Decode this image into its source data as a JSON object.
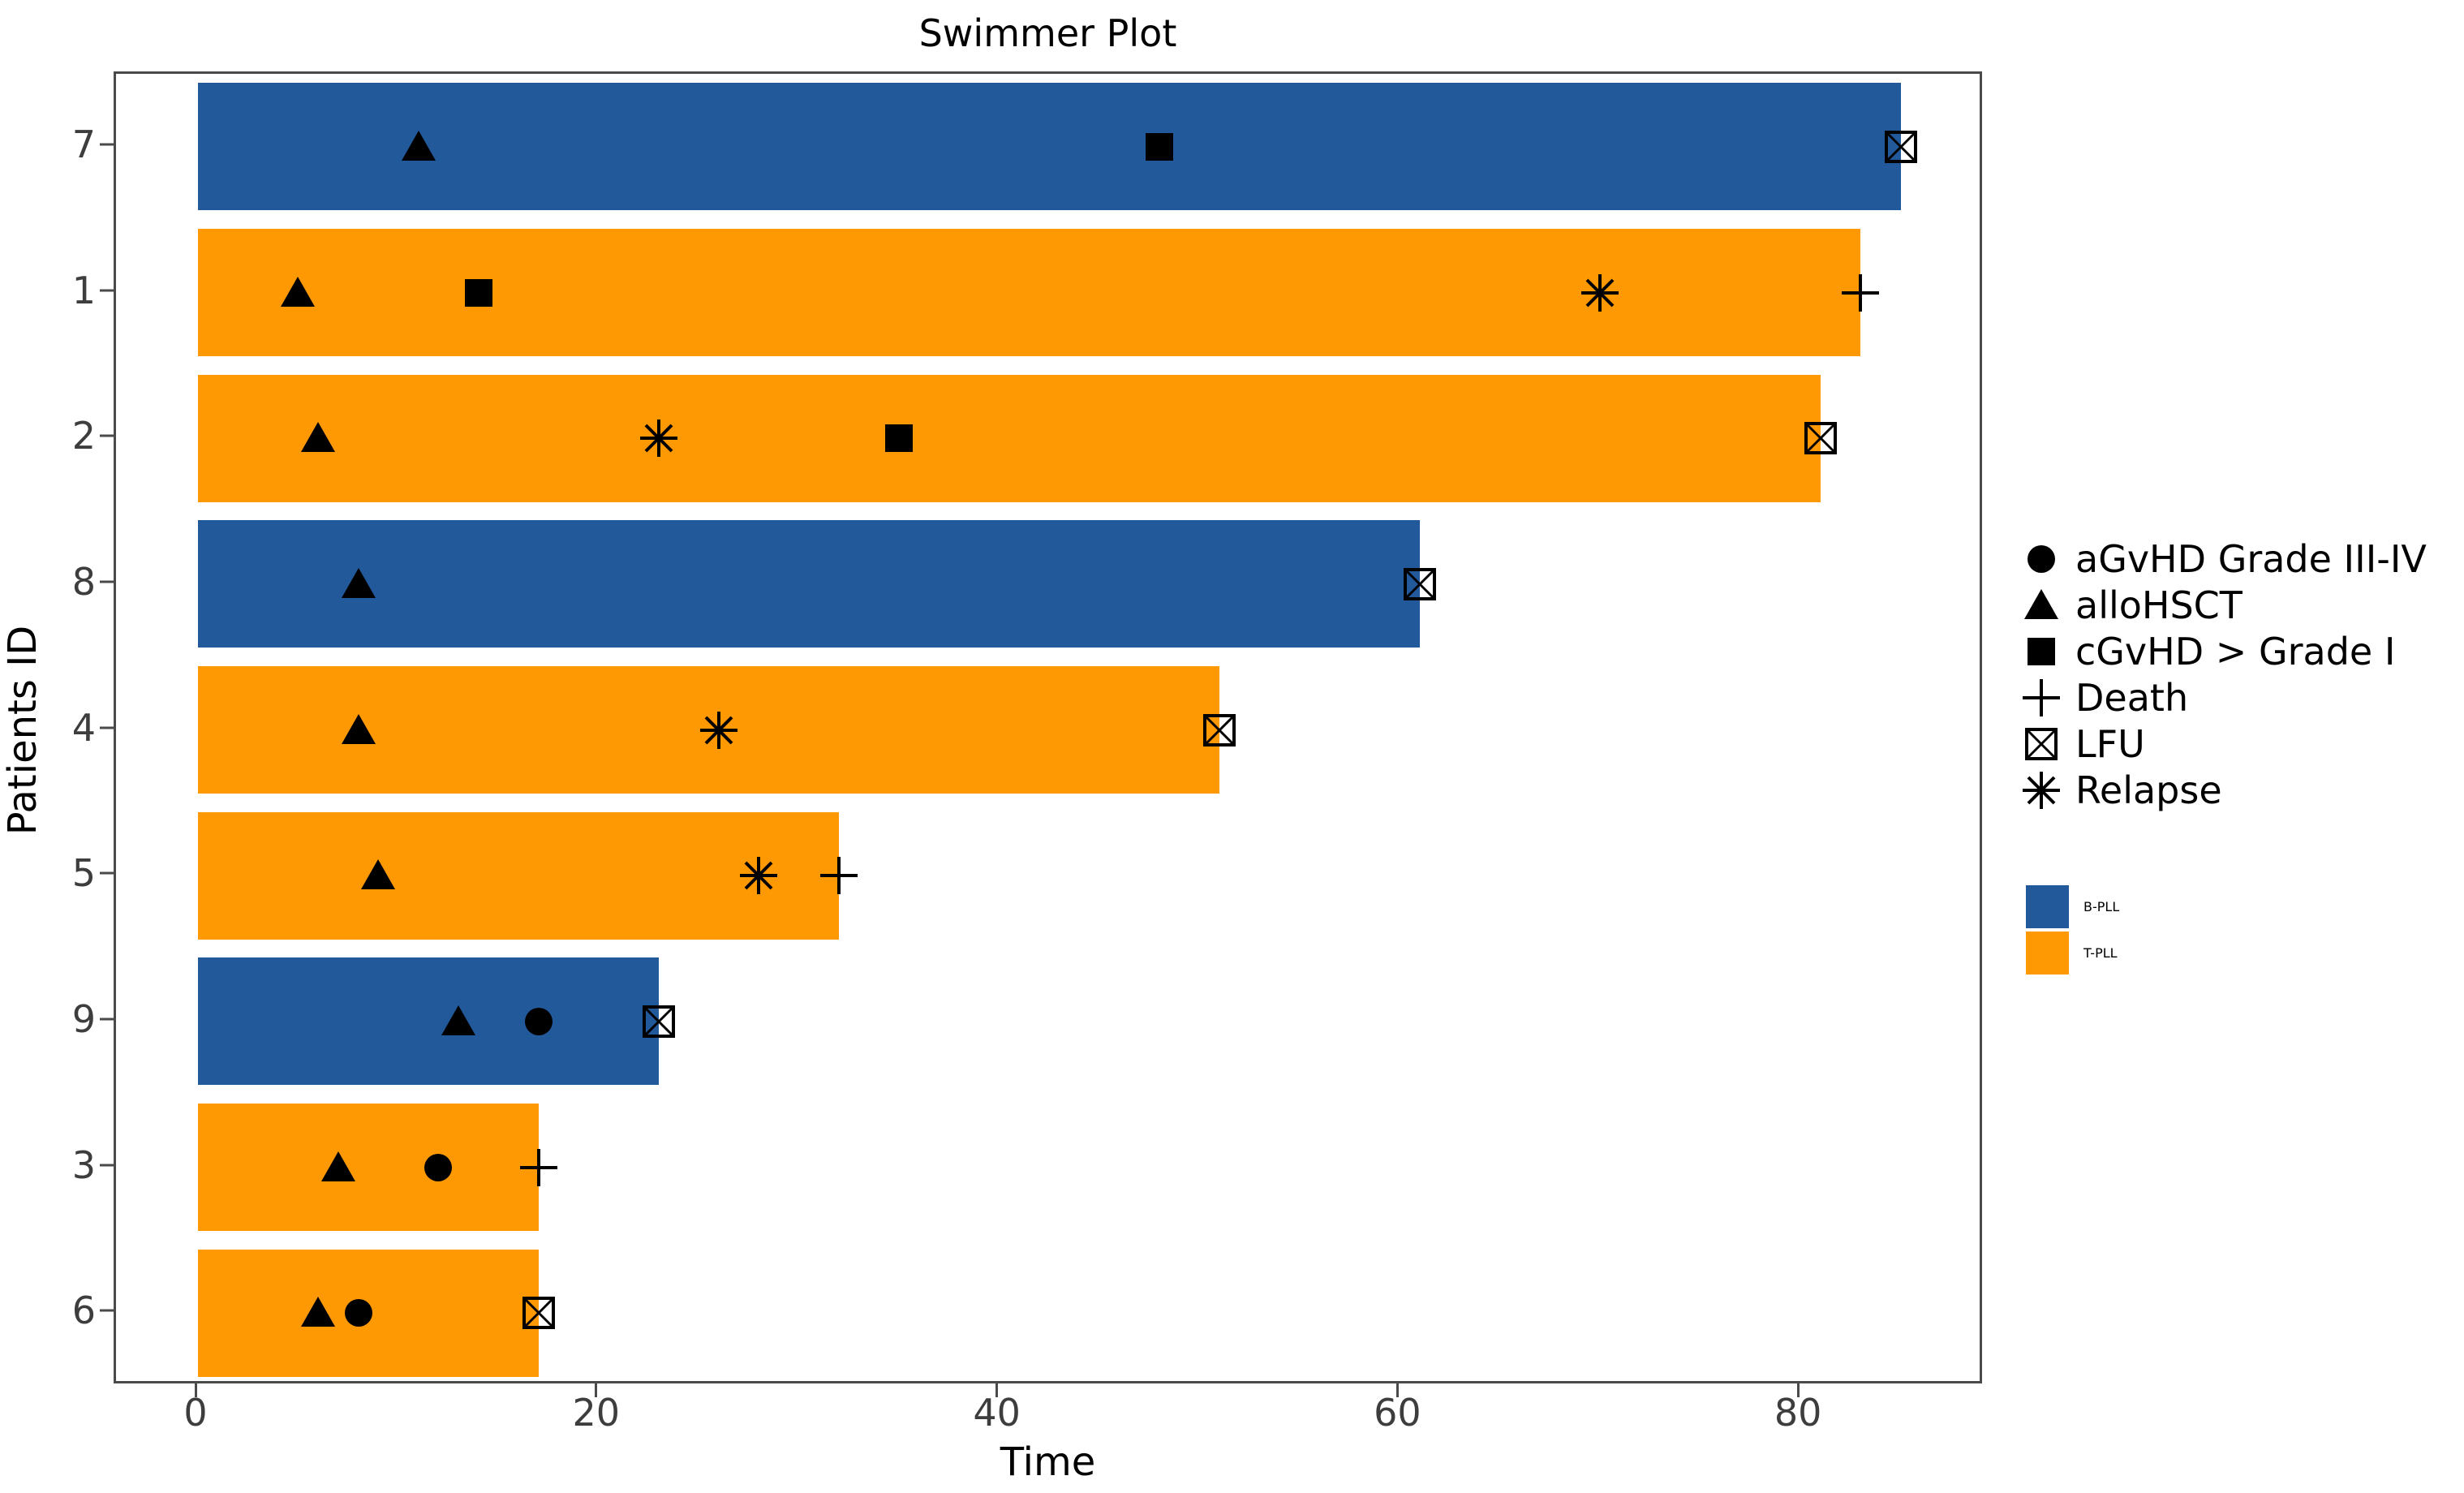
{
  "chart_data": {
    "type": "bar",
    "orientation": "horizontal",
    "title": "Swimmer Plot",
    "xlabel": "Time",
    "ylabel": "Patients ID",
    "xlim": [
      0,
      89
    ],
    "xticks": [
      0,
      20,
      40,
      60,
      80
    ],
    "grid": false,
    "legend_position": "right",
    "marker_color": "#000000",
    "groups": [
      {
        "name": "B-PLL",
        "color": "#22599A"
      },
      {
        "name": "T-PLL",
        "color": "#FF9903"
      }
    ],
    "marker_legend": [
      {
        "symbol": "circle",
        "label": "aGvHD Grade III-IV"
      },
      {
        "symbol": "triangle",
        "label": "alloHSCT"
      },
      {
        "symbol": "square",
        "label": "cGvHD > Grade I"
      },
      {
        "symbol": "plus",
        "label": "Death"
      },
      {
        "symbol": "boxed-x",
        "label": "LFU"
      },
      {
        "symbol": "asterisk",
        "label": "Relapse"
      }
    ],
    "patients": [
      {
        "id": "7",
        "group": "B-PLL",
        "bar_end": 85,
        "events": [
          {
            "type": "alloHSCT",
            "time": 11
          },
          {
            "type": "cGvHD > Grade I",
            "time": 48
          },
          {
            "type": "LFU",
            "time": 85
          }
        ]
      },
      {
        "id": "1",
        "group": "T-PLL",
        "bar_end": 83,
        "events": [
          {
            "type": "alloHSCT",
            "time": 5
          },
          {
            "type": "cGvHD > Grade I",
            "time": 14
          },
          {
            "type": "Relapse",
            "time": 70
          },
          {
            "type": "Death",
            "time": 83
          }
        ]
      },
      {
        "id": "2",
        "group": "T-PLL",
        "bar_end": 81,
        "events": [
          {
            "type": "alloHSCT",
            "time": 6
          },
          {
            "type": "Relapse",
            "time": 23
          },
          {
            "type": "cGvHD > Grade I",
            "time": 35
          },
          {
            "type": "LFU",
            "time": 81
          }
        ]
      },
      {
        "id": "8",
        "group": "B-PLL",
        "bar_end": 61,
        "events": [
          {
            "type": "alloHSCT",
            "time": 8
          },
          {
            "type": "LFU",
            "time": 61
          }
        ]
      },
      {
        "id": "4",
        "group": "T-PLL",
        "bar_end": 51,
        "events": [
          {
            "type": "alloHSCT",
            "time": 8
          },
          {
            "type": "Relapse",
            "time": 26
          },
          {
            "type": "LFU",
            "time": 51
          }
        ]
      },
      {
        "id": "5",
        "group": "T-PLL",
        "bar_end": 32,
        "events": [
          {
            "type": "alloHSCT",
            "time": 9
          },
          {
            "type": "Relapse",
            "time": 28
          },
          {
            "type": "Death",
            "time": 32
          }
        ]
      },
      {
        "id": "9",
        "group": "B-PLL",
        "bar_end": 23,
        "events": [
          {
            "type": "alloHSCT",
            "time": 13
          },
          {
            "type": "aGvHD Grade III-IV",
            "time": 17
          },
          {
            "type": "LFU",
            "time": 23
          }
        ]
      },
      {
        "id": "3",
        "group": "T-PLL",
        "bar_end": 17,
        "events": [
          {
            "type": "alloHSCT",
            "time": 7
          },
          {
            "type": "aGvHD Grade III-IV",
            "time": 12
          },
          {
            "type": "Death",
            "time": 17
          }
        ]
      },
      {
        "id": "6",
        "group": "T-PLL",
        "bar_end": 17,
        "events": [
          {
            "type": "alloHSCT",
            "time": 6
          },
          {
            "type": "aGvHD Grade III-IV",
            "time": 8
          },
          {
            "type": "LFU",
            "time": 17
          }
        ]
      }
    ]
  }
}
